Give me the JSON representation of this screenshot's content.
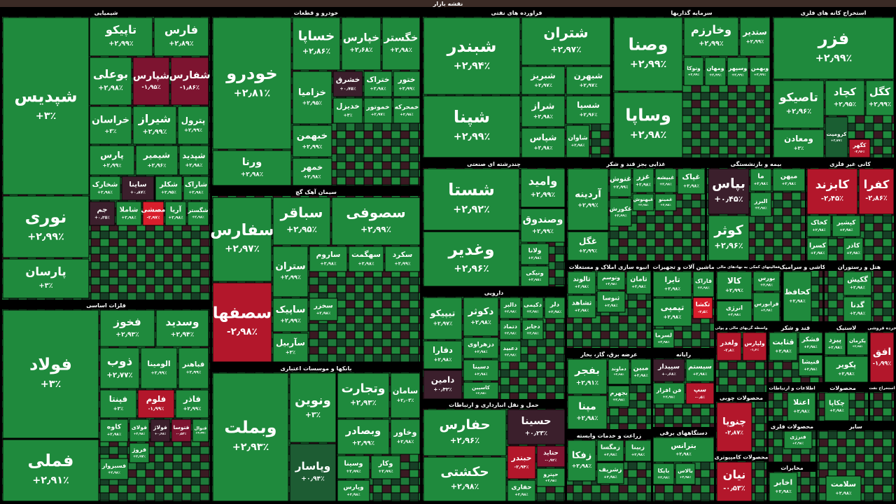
{
  "title": "نقشه بازار",
  "tile_color": "#1f8a3d",
  "sectors": [
    {
      "name": "شیمیایی",
      "tiles": [
        {
          "name": "شپدیس",
          "change": "+۳٪"
        },
        {
          "name": "نوری",
          "change": "+۲٫۹۹٪"
        },
        {
          "name": "پارسان",
          "change": "+۳٪"
        },
        {
          "name": "تاپیکو",
          "change": "+۲٫۹۹٪"
        },
        {
          "name": "فارس",
          "change": "+۲٫۸۹٪"
        },
        {
          "name": "بوعلی",
          "change": "+۲٫۹۸٪"
        },
        {
          "name": "شپارس",
          "change": "-۱٫۹۵٪",
          "color": "#7d1430"
        },
        {
          "name": "شفارس",
          "change": "-۱٫۸۶٪",
          "color": "#7d1430"
        },
        {
          "name": "خراسان",
          "change": "+۳٪"
        },
        {
          "name": "شیراز",
          "change": "+۲٫۹۹٪"
        },
        {
          "name": "پترول",
          "change": "+۲٫۹۹٪"
        },
        {
          "name": "پارس",
          "change": "+۲٫۹۹٪"
        },
        {
          "name": "شیمیر",
          "change": "+۲٫۹۶٪"
        },
        {
          "name": "شپدید",
          "change": "+۲٫۹۸٪"
        },
        {
          "name": "شخارک",
          "change": "+۲٫۹۸٪"
        },
        {
          "name": "ساینا",
          "change": "+۰٫۸۷٪",
          "color": "#3b1f2c"
        },
        {
          "name": "شکلر",
          "change": "+۲٫۹۵٪"
        },
        {
          "name": "شاراک",
          "change": "+۲٫۹۸٪"
        },
        {
          "name": "جم",
          "change": "+۰٫۲۵٪",
          "color": "#3b1f2c"
        },
        {
          "name": "شاملا",
          "change": "+۲٫۹۸٪"
        },
        {
          "name": "مصشی",
          "change": "-۲٫۹۷٪",
          "color": "#d81e2c"
        },
        {
          "name": "آریا",
          "change": "+۲٫۹۸٪"
        },
        {
          "name": "شگستر",
          "change": "+۲٫۹۸٪"
        }
      ]
    },
    {
      "name": "فلزات اساسی",
      "tiles": [
        {
          "name": "فولاد",
          "change": "+۳٪"
        },
        {
          "name": "فملی",
          "change": "+۲٫۹۱٪"
        },
        {
          "name": "فخوز",
          "change": "+۲٫۹۳٪"
        },
        {
          "name": "وسدید",
          "change": "+۲٫۹۴٪"
        },
        {
          "name": "ذوب",
          "change": "+۲٫۷۷٪"
        },
        {
          "name": "الومینا",
          "change": "+۲٫۹۹٪"
        },
        {
          "name": "فباهنر",
          "change": "+۲٫۹۹٪"
        },
        {
          "name": "فپنتا",
          "change": "+۳٪"
        },
        {
          "name": "فلوم",
          "change": "-۱٫۹۹٪",
          "color": "#b3172b"
        },
        {
          "name": "فاذر",
          "change": "+۲٫۹۹٪"
        },
        {
          "name": "کاوه",
          "change": "+۲٫۹۸٪"
        },
        {
          "name": "فولای",
          "change": "+۲٫۹۸٪"
        },
        {
          "name": "فولاژ",
          "change": "+۰٫۶۸٪",
          "color": "#3b1f2c"
        },
        {
          "name": "فتوسا",
          "change": "-۰٫۵۳٪",
          "color": "#7d1430"
        },
        {
          "name": "فنوال",
          "change": "+۲٫۹۹٪"
        },
        {
          "name": "فروژ",
          "change": "+۲٫۹۷٪"
        },
        {
          "name": "فسبزوار",
          "change": "+۲٫۹۸٪"
        }
      ]
    },
    {
      "name": "خودرو و قطعات",
      "tiles": [
        {
          "name": "خودرو",
          "change": "+۲٫۸۱٪"
        },
        {
          "name": "ورنا",
          "change": "+۲٫۹۸٪"
        },
        {
          "name": "خساپا",
          "change": "+۲٫۸۶٪"
        },
        {
          "name": "خپارس",
          "change": "+۲٫۶۸٪"
        },
        {
          "name": "خگستر",
          "change": "+۲٫۹۸٪"
        },
        {
          "name": "خزامیا",
          "change": "+۲٫۹۵٪"
        },
        {
          "name": "خشرق",
          "change": "+۰٫۷۵٪",
          "color": "#3b1f2c"
        },
        {
          "name": "ختراک",
          "change": "+۲٫۹۸٪"
        },
        {
          "name": "ختور",
          "change": "+۲٫۹۹٪"
        },
        {
          "name": "خدیزل",
          "change": "+۳٪"
        },
        {
          "name": "خموتور",
          "change": "+۲٫۹۷٪"
        },
        {
          "name": "خمحرکه",
          "change": "+۲٫۹۸٪"
        },
        {
          "name": "خبهمن",
          "change": "+۲٫۹۹٪"
        },
        {
          "name": "خمهر",
          "change": "+۲٫۹۸٪"
        }
      ]
    },
    {
      "name": "فراورده های نفتی",
      "tiles": [
        {
          "name": "شبندر",
          "change": "+۲٫۹۴٪"
        },
        {
          "name": "شپنا",
          "change": "+۲٫۹۹٪"
        },
        {
          "name": "شتران",
          "change": "+۲٫۹۷٪"
        },
        {
          "name": "شبریز",
          "change": "+۲٫۹۷٪"
        },
        {
          "name": "شبهرن",
          "change": "+۲٫۹۷٪"
        },
        {
          "name": "شراز",
          "change": "+۲٫۹۸٪"
        },
        {
          "name": "شسپا",
          "change": "+۲٫۹۶٪"
        },
        {
          "name": "شاوان",
          "change": "+۲٫۹۸٪"
        },
        {
          "name": "شپاس",
          "change": "+۲٫۹۸٪"
        }
      ]
    },
    {
      "name": "سرمایه گذاریها",
      "tiles": [
        {
          "name": "وصنا",
          "change": "+۲٫۹۹٪"
        },
        {
          "name": "وساپا",
          "change": "+۲٫۹۸٪"
        },
        {
          "name": "وخارزم",
          "change": "+۲٫۹۹٪"
        },
        {
          "name": "ستدیر",
          "change": "+۲٫۹۹٪"
        },
        {
          "name": "وتوکا",
          "change": "+۲٫۹۹٪"
        },
        {
          "name": "ومهان",
          "change": "+۲٫۹۹٪"
        },
        {
          "name": "وسپهر",
          "change": "+۲٫۹۹٪"
        },
        {
          "name": "وبهمن",
          "change": "+۲٫۹۹٪"
        }
      ]
    },
    {
      "name": "استخراج کانه های فلزی",
      "tiles": [
        {
          "name": "فزر",
          "change": "+۲٫۹۹٪"
        },
        {
          "name": "تاصیکو",
          "change": "+۲٫۹۶٪"
        },
        {
          "name": "کچاد",
          "change": "+۲٫۹۵٪"
        },
        {
          "name": "کگل",
          "change": "+۲٫۹۹٪"
        },
        {
          "name": "ومعادن",
          "change": "+۳٪"
        },
        {
          "name": "کرومیت",
          "change": "+۲٫۷۷٪",
          "color": "#1a5e32"
        },
        {
          "name": "کگهر",
          "change": "-۲٫۹۶٪",
          "color": "#b3172b"
        }
      ]
    },
    {
      "name": "سیمان آهک گچ",
      "tiles": [
        {
          "name": "سفارس",
          "change": "+۲٫۹۷٪"
        },
        {
          "name": "سصفها",
          "change": "-۲٫۹۸٪",
          "color": "#b3172b"
        },
        {
          "name": "سباقر",
          "change": "+۲٫۹۵٪"
        },
        {
          "name": "سصوفی",
          "change": "+۲٫۹۹٪"
        },
        {
          "name": "ستران",
          "change": "+۲٫۹۹٪"
        },
        {
          "name": "ساروم",
          "change": "+۲٫۹۸٪"
        },
        {
          "name": "سهگمت",
          "change": "+۲٫۹۸٪"
        },
        {
          "name": "سکرد",
          "change": "+۲٫۹۹٪"
        },
        {
          "name": "ساپیک",
          "change": "+۲٫۹۹٪"
        },
        {
          "name": "سخزر",
          "change": "+۲٫۹۸٪"
        },
        {
          "name": "سآربیل",
          "change": "+۳٪"
        }
      ]
    },
    {
      "name": "بانکها و موسسات اعتباری",
      "tiles": [
        {
          "name": "وبملت",
          "change": "+۲٫۹۳٪"
        },
        {
          "name": "ونوین",
          "change": "+۳٪"
        },
        {
          "name": "وپاسار",
          "change": "+۰٫۹۴٪",
          "color": "#1d5c33"
        },
        {
          "name": "وتجارت",
          "change": "+۲٫۹۳٪"
        },
        {
          "name": "سامان",
          "change": "+۲٫۰۳٪"
        },
        {
          "name": "وبصادر",
          "change": "+۲٫۹۹٪"
        },
        {
          "name": "وخاور",
          "change": "+۲٫۹۸٪"
        },
        {
          "name": "وسینا",
          "change": "+۲٫۹۹٪"
        },
        {
          "name": "وکار",
          "change": "+۲٫۹۹٪"
        },
        {
          "name": "وپارس",
          "change": "+۲٫۹۸٪"
        }
      ]
    },
    {
      "name": "چندرشته ای صنعتی",
      "tiles": [
        {
          "name": "شستا",
          "change": "+۲٫۹۲٪"
        },
        {
          "name": "وغدیر",
          "change": "+۲٫۹۶٪"
        },
        {
          "name": "وامید",
          "change": "+۲٫۹۹٪"
        },
        {
          "name": "وصندوق",
          "change": "+۲٫۹۹٪"
        },
        {
          "name": "ولانا",
          "change": "+۲٫۹۸٪"
        },
        {
          "name": "ونیکی",
          "change": "+۲٫۹۸٪"
        }
      ]
    },
    {
      "name": "غذایی بجز قند و شکر",
      "tiles": [
        {
          "name": "آردینه",
          "change": "+۲٫۹۹٪"
        },
        {
          "name": "غنوش",
          "change": "+۲٫۹۹٪"
        },
        {
          "name": "غکورش",
          "change": "+۲٫۹۹٪"
        },
        {
          "name": "غگل",
          "change": "+۲٫۹۹٪"
        },
        {
          "name": "غزر",
          "change": "+۲٫۹۸٪"
        },
        {
          "name": "غبیشه",
          "change": "+۲٫۹۸٪"
        },
        {
          "name": "غبهنوش",
          "change": "+۲٫۹۸٪"
        },
        {
          "name": "غمینو",
          "change": "+۲٫۹۸٪"
        },
        {
          "name": "غپاک",
          "change": "+۲٫۹۸٪"
        }
      ]
    },
    {
      "name": "بیمه و بازنشستگی",
      "tiles": [
        {
          "name": "بپاس",
          "change": "+۰٫۴۵٪",
          "color": "#3b1f2c"
        },
        {
          "name": "کوثر",
          "change": "+۲٫۹۶٪"
        },
        {
          "name": "ما",
          "change": "+۲٫۹۸٪"
        },
        {
          "name": "میهن",
          "change": "+۲٫۹۸٪"
        },
        {
          "name": "البرز",
          "change": "+۲٫۹۸٪"
        }
      ]
    },
    {
      "name": "کانی غیر فلزی",
      "tiles": [
        {
          "name": "کابزند",
          "change": "-۲٫۴۵٪",
          "color": "#b3172b"
        },
        {
          "name": "کفرا",
          "change": "-۲٫۸۶٪",
          "color": "#b3172b"
        },
        {
          "name": "کخاک",
          "change": "+۲٫۹۸٪"
        },
        {
          "name": "کپشیر",
          "change": "+۲٫۹۸٪"
        },
        {
          "name": "کسرا",
          "change": "+۲٫۹۸٪"
        },
        {
          "name": "کاذر",
          "change": "+۲٫۹۸٪"
        }
      ]
    },
    {
      "name": "دارویی",
      "tiles": [
        {
          "name": "تیپیکو",
          "change": "+۲٫۹۷٪"
        },
        {
          "name": "دکوثر",
          "change": "+۲٫۹۸٪"
        },
        {
          "name": "دالبر",
          "change": "+۲٫۹۸٪"
        },
        {
          "name": "دکیمی",
          "change": "+۲٫۹۸٪"
        },
        {
          "name": "دلر",
          "change": "+۲٫۹۸٪"
        },
        {
          "name": "دفارا",
          "change": "+۲٫۹۸٪"
        },
        {
          "name": "دزهراوی",
          "change": "+۲٫۹۸٪"
        },
        {
          "name": "دتماد",
          "change": "+۲٫۹۸٪"
        },
        {
          "name": "دعبید",
          "change": "+۲٫۹۸٪"
        },
        {
          "name": "دجابر",
          "change": "+۲٫۹۸٪"
        },
        {
          "name": "دامین",
          "change": "+۰٫۴۲٪",
          "color": "#3b1f2c"
        },
        {
          "name": "دسینا",
          "change": "+۲٫۹۸٪"
        },
        {
          "name": "کاسپین",
          "change": "+۲٫۹۸٪"
        }
      ]
    },
    {
      "name": "حمل و نقل انبارداری و ارتباطات",
      "tiles": [
        {
          "name": "حفارس",
          "change": "+۲٫۹۶٪"
        },
        {
          "name": "حکشتی",
          "change": "+۲٫۹۸٪"
        },
        {
          "name": "حسینا",
          "change": "+۰٫۲۳٪",
          "color": "#3b1f2c"
        },
        {
          "name": "حبندر",
          "change": "-۲٫۹۴٪",
          "color": "#b3172b"
        },
        {
          "name": "حتاید",
          "change": "-۰٫۹۲٪",
          "color": "#7d1430"
        },
        {
          "name": "حپترو",
          "change": "+۲٫۹۸٪"
        },
        {
          "name": "حفاری",
          "change": "+۲٫۹۸٪"
        }
      ]
    },
    {
      "name": "انبوه سازی املاک و مستغلات",
      "tiles": [
        {
          "name": "ثالوند",
          "change": "+۲٫۹۸٪"
        },
        {
          "name": "ثشاهد",
          "change": "+۲٫۹۸٪"
        },
        {
          "name": "وتوسم",
          "change": "+۲٫۹۸٪"
        },
        {
          "name": "ثنوسا",
          "change": "+۲٫۹۸٪"
        },
        {
          "name": "ثامان",
          "change": "+۲٫۹۸٪"
        }
      ]
    },
    {
      "name": "ماشین آلات و تجهیزات",
      "tiles": [
        {
          "name": "تایرا",
          "change": "+۲٫۹۸٪"
        },
        {
          "name": "فاراک",
          "change": "+۲٫۹۸٪"
        },
        {
          "name": "تپمپی",
          "change": "+۲٫۹۸٪"
        },
        {
          "name": "تکشا",
          "change": "-۲٫۵٪",
          "color": "#d81e2c"
        },
        {
          "name": "لسرما",
          "change": "+۲٫۹۸٪"
        }
      ]
    },
    {
      "name": "فعالیتهای کمکی به نهادهای مالی",
      "tiles": [
        {
          "name": "کالا",
          "change": "+۲٫۹۹٪"
        },
        {
          "name": "بورس",
          "change": "+۲٫۹۸٪"
        },
        {
          "name": "انرژی",
          "change": "+۲٫۹۸٪"
        },
        {
          "name": "فرابورس",
          "change": "+۲٫۹۸٪"
        }
      ]
    },
    {
      "name": "کاشی و سرامیک",
      "tiles": [
        {
          "name": "کحافظ",
          "change": "+۲٫۹۸٪"
        }
      ]
    },
    {
      "name": "هتل و رستوران",
      "tiles": [
        {
          "name": "گکیش",
          "change": "+۲٫۹۸٪"
        },
        {
          "name": "گدنا",
          "change": "+۲٫۹۸٪"
        }
      ]
    },
    {
      "name": "عرضه برق، گاز، بخار",
      "tiles": [
        {
          "name": "بفجر",
          "change": "+۲٫۹۱٪"
        },
        {
          "name": "دماوند",
          "change": "+۲٫۹۸٪"
        },
        {
          "name": "مبین",
          "change": "+۲٫۹۸٪"
        },
        {
          "name": "مپنا",
          "change": "+۲٫۹۸٪"
        },
        {
          "name": "بجهرم",
          "change": "+۲٫۹۸٪"
        }
      ]
    },
    {
      "name": "زراعت و خدمات وابسته",
      "tiles": [
        {
          "name": "زفکا",
          "change": "+۲٫۹۸٪"
        },
        {
          "name": "زمگسا",
          "change": "+۲٫۹۸٪"
        },
        {
          "name": "زبینا",
          "change": "+۲٫۹۸٪"
        },
        {
          "name": "زشریف",
          "change": "+۲٫۹۸٪"
        }
      ]
    },
    {
      "name": "رایانه",
      "tiles": [
        {
          "name": "سپیدار",
          "change": "+۰٫۶۸٪",
          "color": "#3b1f2c"
        },
        {
          "name": "سیستم",
          "change": "+۲٫۹۸٪"
        },
        {
          "name": "فن افزار",
          "change": "+۲٫۹۸٪"
        },
        {
          "name": "سپ",
          "change": "-۰٫۵٪",
          "color": "#b3172b"
        }
      ]
    },
    {
      "name": "دستگاههای برقی",
      "tiles": [
        {
          "name": "بترانس",
          "change": "+۲٫۹۸٪"
        },
        {
          "name": "بایکا",
          "change": "+۲٫۹۸٪"
        },
        {
          "name": "بالاس",
          "change": "+۲٫۹۸٪"
        }
      ]
    },
    {
      "name": "واسطه گریهای مالی و پولی",
      "tiles": [
        {
          "name": "ولغدر",
          "change": "-۲٫۸٪",
          "color": "#b3172b"
        },
        {
          "name": "ولپارس",
          "change": "-۱٫۶٪",
          "color": "#b3172b"
        }
      ]
    },
    {
      "name": "قند و شکر",
      "tiles": [
        {
          "name": "قثابت",
          "change": "+۲٫۹۸٪"
        },
        {
          "name": "قشکر",
          "change": "+۲٫۹۸٪"
        },
        {
          "name": "قنیشا",
          "change": "+۲٫۹۸٪"
        }
      ]
    },
    {
      "name": "لاستیک",
      "tiles": [
        {
          "name": "پیزد",
          "change": "+۲٫۹۸٪"
        },
        {
          "name": "پکرمان",
          "change": "+۲٫۹۸٪"
        },
        {
          "name": "پکویر",
          "change": "+۲٫۹۸٪"
        }
      ]
    },
    {
      "name": "خرده فروشی",
      "tiles": [
        {
          "name": "افق",
          "change": "-۱٫۹۹٪",
          "color": "#b3172b"
        }
      ]
    },
    {
      "name": "محصولات چوبی",
      "tiles": [
        {
          "name": "چنوپا",
          "change": "-۲٫۸۷٪",
          "color": "#b3172b"
        }
      ]
    },
    {
      "name": "محصولات کامپیوتری",
      "tiles": [
        {
          "name": "نیان",
          "change": "-۰٫۵۳٪",
          "color": "#b3172b"
        }
      ]
    },
    {
      "name": "اطلاعات و ارتباطات",
      "tiles": [
        {
          "name": "اعتلا",
          "change": "+۲٫۹۸٪"
        }
      ]
    },
    {
      "name": "محصولات فلزی",
      "tiles": [
        {
          "name": "فنرژی",
          "change": "+۲٫۹۸٪"
        }
      ]
    },
    {
      "name": "مخابرات",
      "tiles": [
        {
          "name": "اخابر",
          "change": "+۲٫۹۸٪"
        }
      ]
    },
    {
      "name": "محصولات",
      "tiles": [
        {
          "name": "چکاپا",
          "change": "+۲٫۹۸٪"
        }
      ]
    },
    {
      "name": "استخراج نفت",
      "tiles": []
    },
    {
      "name": "سایر",
      "tiles": [
        {
          "name": "سلامت",
          "change": "+۲٫۹۸٪"
        }
      ]
    }
  ]
}
